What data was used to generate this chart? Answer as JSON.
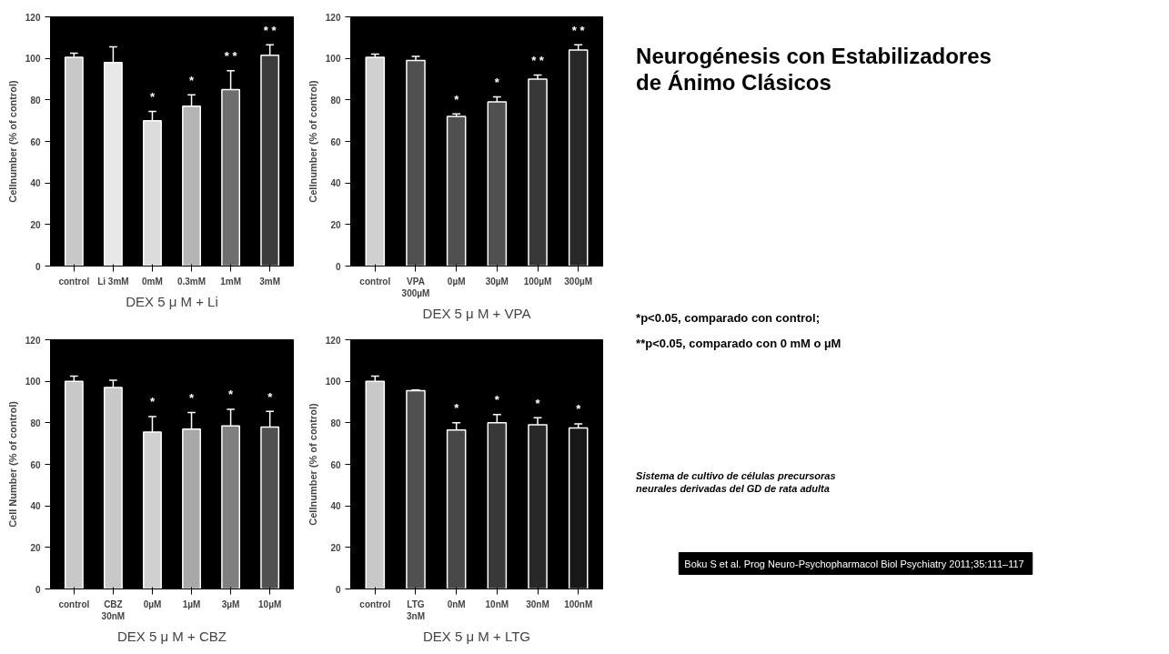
{
  "chart_data": [
    {
      "type": "bar",
      "ylabel": "Cellnumber (% of control)",
      "xlabel": "DEX 5 μ M + Li",
      "categories": [
        "control",
        "Li 3mM",
        "0mM",
        "0.3mM",
        "1mM",
        "3mM"
      ],
      "values": [
        100.5,
        98,
        70,
        77,
        85,
        101.5
      ],
      "colors": [
        "#c8c8c8",
        "#e8e8e8",
        "#dcdcdc",
        "#b4b4b4",
        "#6e6e6e",
        "#3c3c3c"
      ],
      "errors": [
        [
          100.5,
          102.5
        ],
        [
          98,
          105.5
        ],
        [
          70,
          74.5
        ],
        [
          77,
          82.5
        ],
        [
          85,
          94
        ],
        [
          101.5,
          106.5
        ]
      ],
      "ylim": [
        0,
        120
      ],
      "yticks": [
        0,
        20,
        40,
        60,
        80,
        100,
        120
      ],
      "grid": false,
      "annotations": [
        "*",
        "*",
        "* *",
        "* *"
      ]
    },
    {
      "type": "bar",
      "ylabel": "Cellnumber (% of control)",
      "xlabel": "DEX 5 μ M + VPA",
      "categories": [
        "control",
        "VPA\n300µM",
        "0µM",
        "30µM",
        "100µM",
        "300µM"
      ],
      "values": [
        100.5,
        99,
        72,
        79,
        90,
        104
      ],
      "colors": [
        "#d0d0d0",
        "#505050",
        "#505050",
        "#505050",
        "#383838",
        "#282828"
      ],
      "errors": [
        [
          100.5,
          102
        ],
        [
          99,
          101
        ],
        [
          72,
          73.3
        ],
        [
          79,
          81.5
        ],
        [
          90,
          92
        ],
        [
          104,
          106.5
        ]
      ],
      "ylim": [
        0,
        120
      ],
      "yticks": [
        0,
        20,
        40,
        60,
        80,
        100,
        120
      ],
      "grid": false,
      "annotations": [
        "*",
        "*",
        "* *",
        "* *"
      ]
    },
    {
      "type": "bar",
      "ylabel": "Cell Number (% of control)",
      "xlabel": "DEX 5 μ M + CBZ",
      "categories": [
        "control",
        "CBZ\n30nM",
        "0µM",
        "1µM",
        "3µM",
        "10µM"
      ],
      "values": [
        100,
        97,
        75.5,
        77,
        78.5,
        78
      ],
      "colors": [
        "#c8c8c8",
        "#c8c8c8",
        "#d0d0d0",
        "#a8a8a8",
        "#808080",
        "#505050"
      ],
      "errors": [
        [
          100,
          102.5
        ],
        [
          97,
          100.5
        ],
        [
          75.5,
          83
        ],
        [
          77,
          85
        ],
        [
          78.5,
          86.5
        ],
        [
          78,
          85.5
        ]
      ],
      "ylim": [
        0,
        120
      ],
      "yticks": [
        0,
        20,
        40,
        60,
        80,
        100,
        120
      ],
      "grid": false,
      "annotations": [
        "*",
        "*",
        "*",
        "*"
      ]
    },
    {
      "type": "bar",
      "ylabel": "Cellnumber (% of control)",
      "xlabel": "DEX 5 μ M + LTG",
      "categories": [
        "control",
        "LTG\n3nM",
        "0nM",
        "10nM",
        "30nM",
        "100nM"
      ],
      "values": [
        100,
        95.5,
        76.5,
        80,
        79,
        77.5
      ],
      "colors": [
        "#c8c8c8",
        "#505050",
        "#484848",
        "#383838",
        "#282828",
        "#181818"
      ],
      "errors": [
        [
          100,
          102.5
        ],
        [
          95.5,
          95.8
        ],
        [
          76.5,
          80
        ],
        [
          80,
          84
        ],
        [
          79,
          82.5
        ],
        [
          77.5,
          79.5
        ]
      ],
      "ylim": [
        0,
        120
      ],
      "yticks": [
        0,
        20,
        40,
        60,
        80,
        100,
        120
      ],
      "grid": false,
      "annotations": [
        "*",
        "*",
        "*",
        "*"
      ]
    },
    {
      "type": "other",
      "title": "Neurogénesis con Estabilizadores\nde Ánimo Clásicos",
      "annotations": [
        "*p<0.05, comparado con control;",
        "**p<0.05, comparado con 0 mM o µM",
        "Sistema de cultivo de células precursoras\nneurales derivadas del GD de rata adulta",
        "Boku S et al.  Prog Neuro-Psychopharmacol Biol Psychiatry 2011;35:111–117"
      ]
    }
  ]
}
